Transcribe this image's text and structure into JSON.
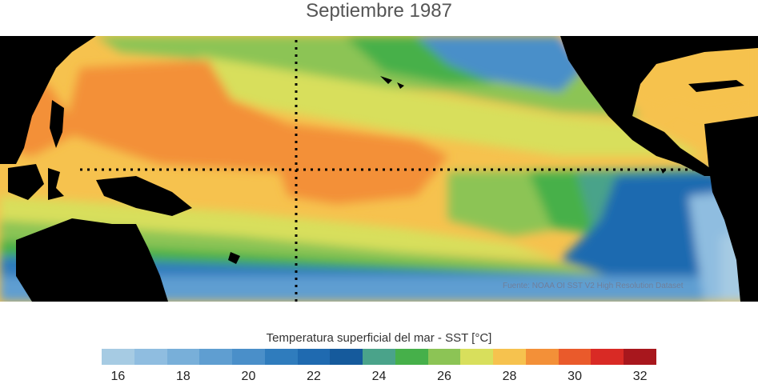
{
  "title": "Septiembre 1987",
  "source": "Fuente: NOAA OI SST V2 High Resolution Dataset",
  "legend": {
    "label": "Temperatura superficial del mar - SST  [°C]",
    "colors": [
      "#a6cbe3",
      "#8fbde0",
      "#78afd9",
      "#5f9ed1",
      "#4a8fc9",
      "#2f7cbd",
      "#1f6ab0",
      "#155a9c",
      "#4aa38a",
      "#46b04a",
      "#8cc455",
      "#d8df5c",
      "#f6c24e",
      "#f39038",
      "#ea5a2b",
      "#d92a25",
      "#a8171d"
    ],
    "ticks": [
      "16",
      "18",
      "20",
      "22",
      "24",
      "26",
      "28",
      "30",
      "32"
    ]
  }
}
